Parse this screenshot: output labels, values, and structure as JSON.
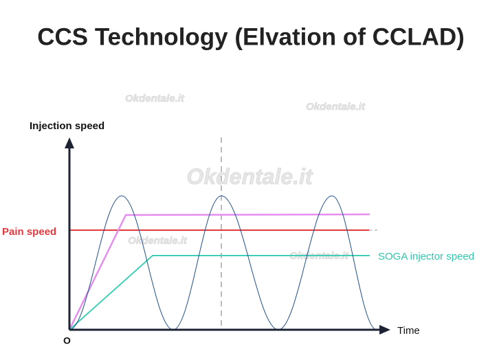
{
  "title": "CCS Technology (Elvation of CCLAD)",
  "y_axis_label": "Injection speed",
  "x_axis_label": "Time",
  "origin_label": "O",
  "pain_speed_label": "Pain speed",
  "soga_label": "SOGA injector speed",
  "watermarks": [
    "Okdentale.it",
    "Okdentale.it",
    "Okdentale.it",
    "Okdentale.it",
    "Okdentale.it"
  ]
}
